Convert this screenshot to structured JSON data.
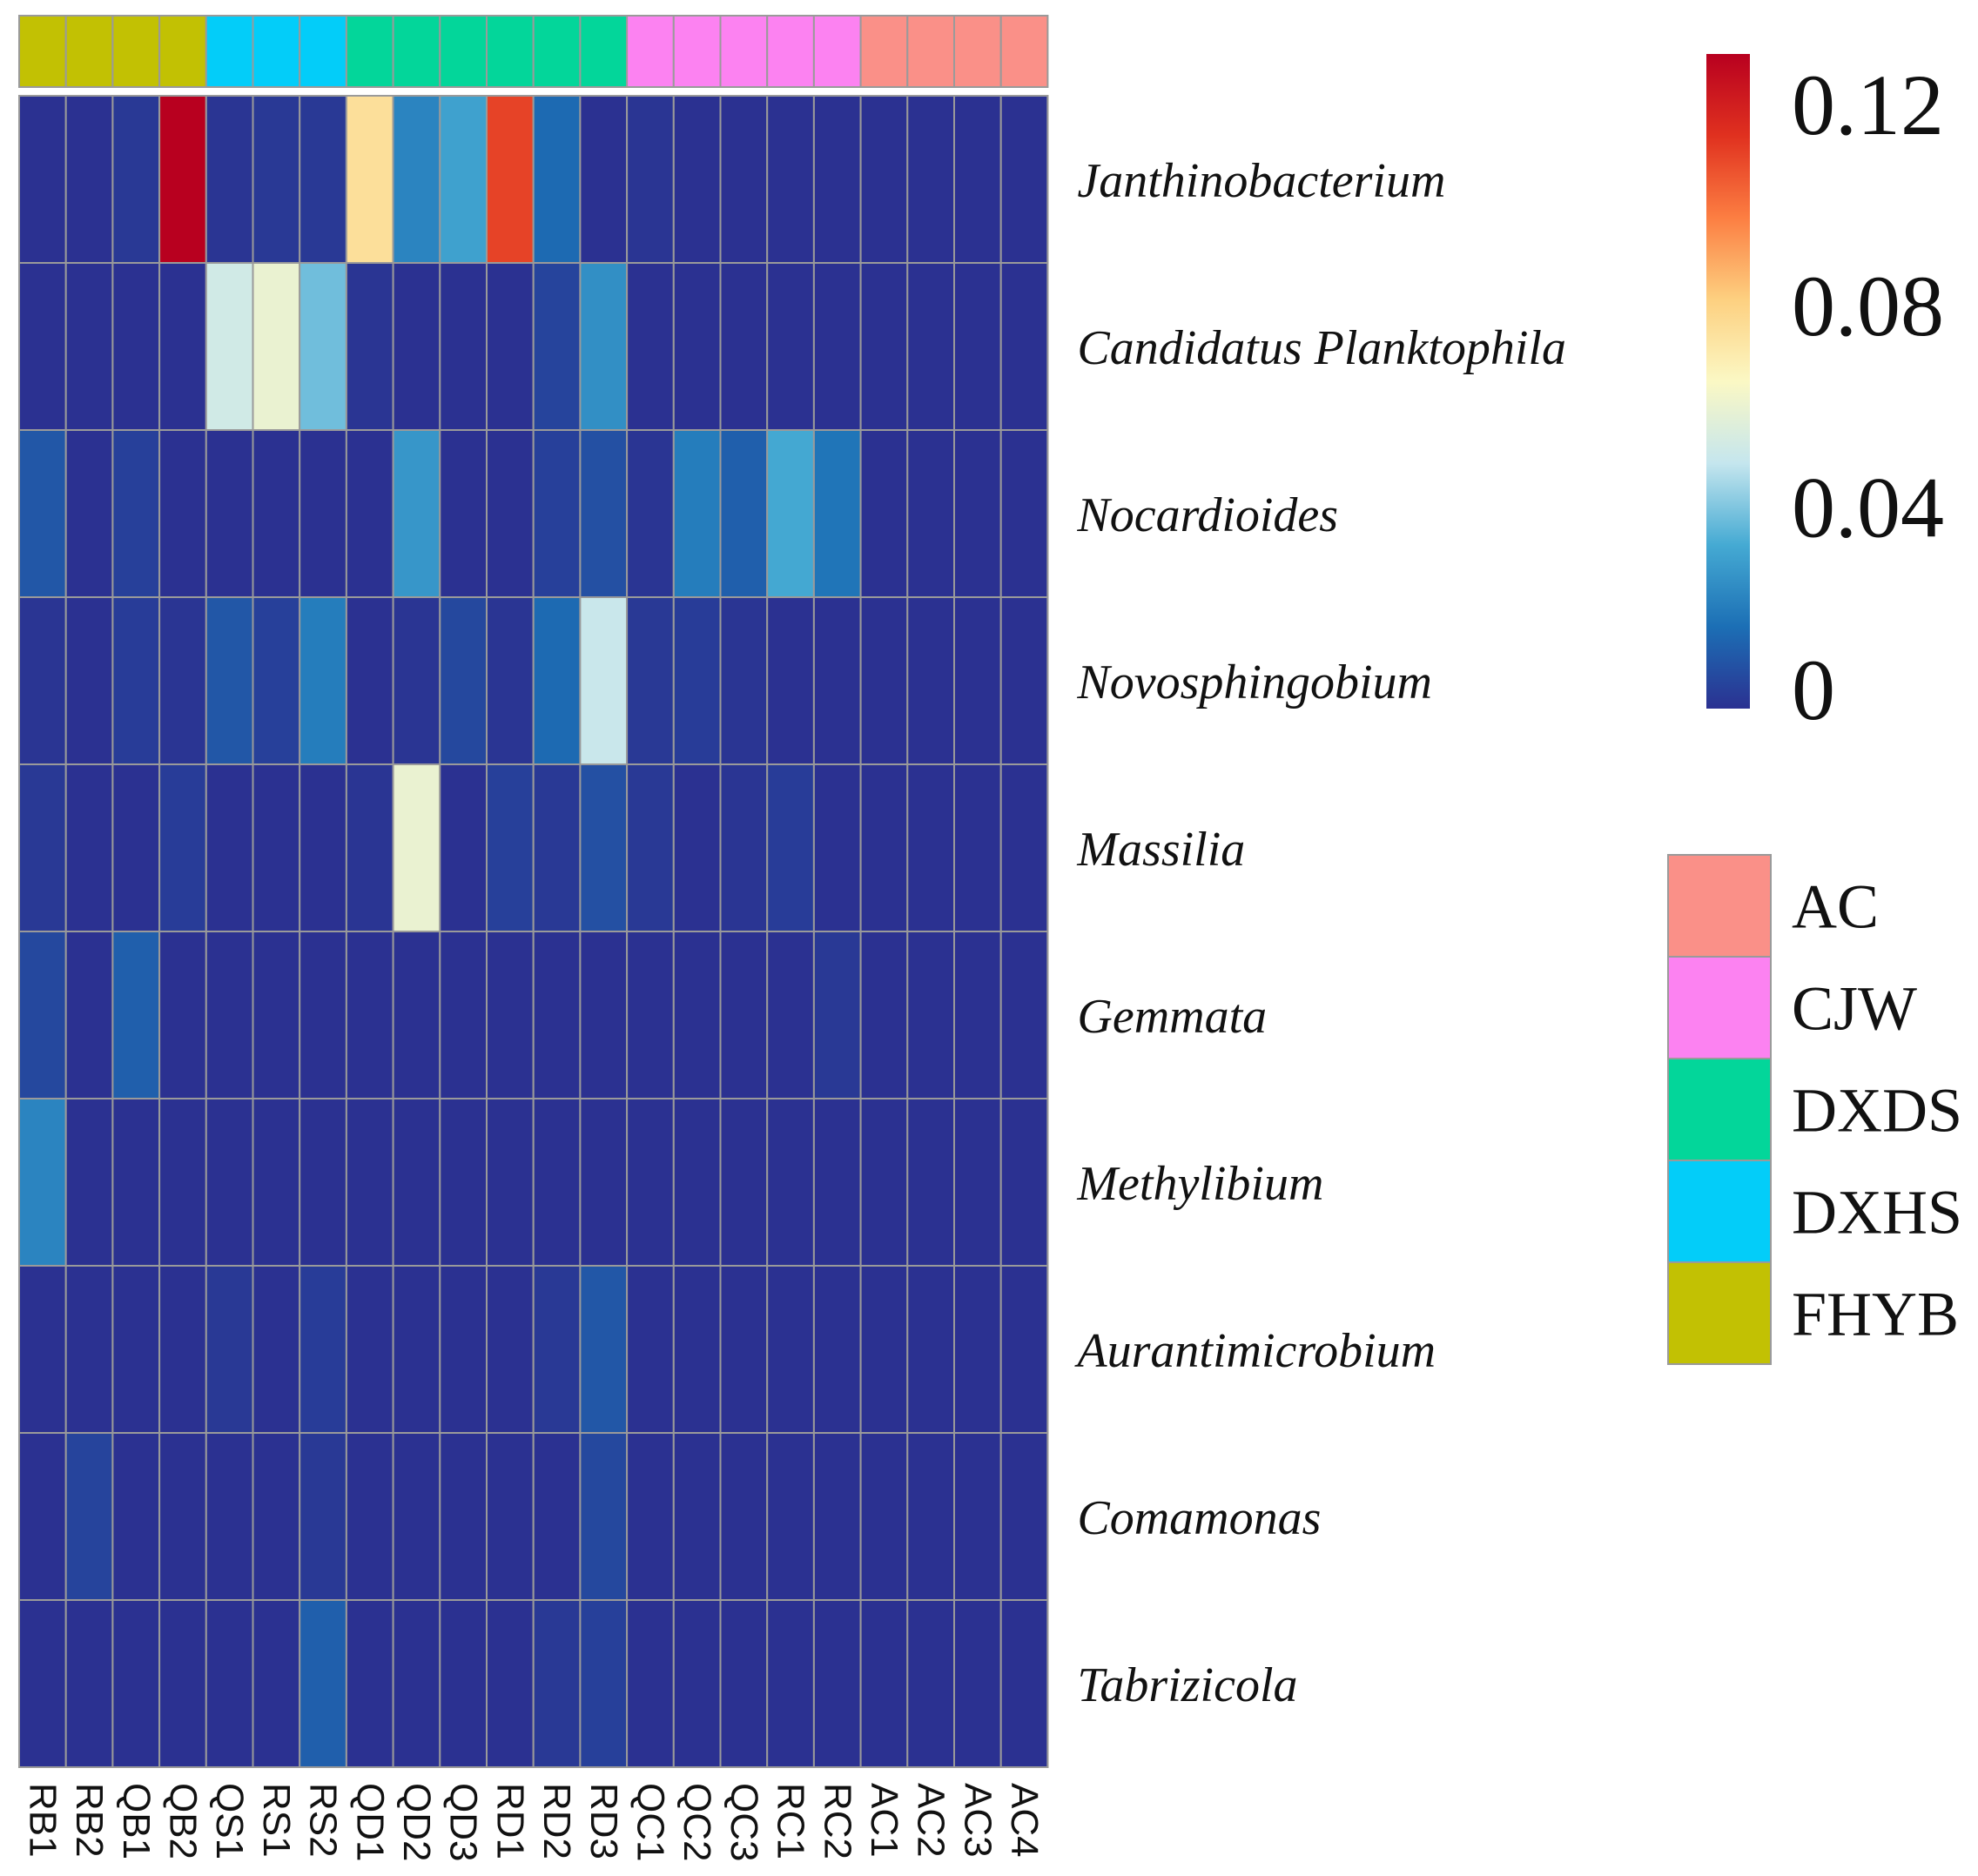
{
  "chart_data": {
    "type": "heatmap",
    "title": "",
    "columns": [
      "RB1",
      "RB2",
      "QB1",
      "QB2",
      "QS1",
      "RS1",
      "RS2",
      "QD1",
      "QD2",
      "QD3",
      "RD1",
      "RD2",
      "RD3",
      "QC1",
      "QC2",
      "QC3",
      "RC1",
      "RC2",
      "AC1",
      "AC2",
      "AC3",
      "AC4"
    ],
    "column_groups": [
      "FHYB",
      "FHYB",
      "FHYB",
      "FHYB",
      "DXHS",
      "DXHS",
      "DXHS",
      "DXDS",
      "DXDS",
      "DXDS",
      "DXDS",
      "DXDS",
      "DXDS",
      "CJW",
      "CJW",
      "CJW",
      "CJW",
      "CJW",
      "AC",
      "AC",
      "AC",
      "AC"
    ],
    "rows": [
      "Janthinobacterium",
      "Candidatus Planktophila",
      "Nocardioides",
      "Novosphingobium",
      "Massilia",
      "Gemmata",
      "Methylibium",
      "Aurantimicrobium",
      "Comamonas",
      "Tabrizicola"
    ],
    "values": [
      [
        0.0,
        0.0,
        0.002,
        0.13,
        0.001,
        0.002,
        0.002,
        0.075,
        0.022,
        0.03,
        0.11,
        0.015,
        0.0,
        0.001,
        0.0,
        0.0,
        0.0,
        0.0,
        0.0,
        0.0,
        0.0,
        0.0
      ],
      [
        0.0,
        0.0,
        0.0,
        0.0,
        0.052,
        0.06,
        0.038,
        0.001,
        0.0,
        0.0,
        0.0,
        0.005,
        0.025,
        0.0,
        0.0,
        0.0,
        0.0,
        0.0,
        0.0,
        0.0,
        0.0,
        0.0
      ],
      [
        0.01,
        0.0,
        0.004,
        0.0,
        0.0,
        0.0,
        0.0,
        0.0,
        0.027,
        0.0,
        0.0,
        0.004,
        0.008,
        0.001,
        0.02,
        0.012,
        0.032,
        0.018,
        0.0,
        0.0,
        0.0,
        0.0
      ],
      [
        0.001,
        0.0,
        0.003,
        0.001,
        0.01,
        0.004,
        0.02,
        0.0,
        0.001,
        0.006,
        0.001,
        0.015,
        0.05,
        0.002,
        0.003,
        0.001,
        0.0,
        0.0,
        0.0,
        0.0,
        0.0,
        0.0
      ],
      [
        0.002,
        0.0,
        0.0,
        0.003,
        0.0,
        0.0,
        0.0,
        0.001,
        0.06,
        0.0,
        0.004,
        0.002,
        0.008,
        0.002,
        0.0,
        0.001,
        0.003,
        0.0,
        0.0,
        0.0,
        0.0,
        0.0
      ],
      [
        0.006,
        0.0,
        0.012,
        0.0,
        0.0,
        0.0,
        0.0,
        0.0,
        0.0,
        0.0,
        0.0,
        0.0,
        0.0,
        0.0,
        0.0,
        0.0,
        0.0,
        0.002,
        0.0,
        0.0,
        0.0,
        0.0
      ],
      [
        0.022,
        0.0,
        0.0,
        0.0,
        0.0,
        0.0,
        0.0,
        0.0,
        0.0,
        0.0,
        0.0,
        0.0,
        0.0,
        0.0,
        0.0,
        0.0,
        0.0,
        0.0,
        0.0,
        0.0,
        0.0,
        0.0
      ],
      [
        0.0,
        0.0,
        0.0,
        0.0,
        0.002,
        0.0,
        0.003,
        0.0,
        0.0,
        0.0,
        0.0,
        0.002,
        0.01,
        0.0,
        0.0,
        0.0,
        0.0,
        0.0,
        0.0,
        0.0,
        0.0,
        0.0
      ],
      [
        0.0,
        0.005,
        0.0,
        0.0,
        0.0,
        0.0,
        0.002,
        0.0,
        0.0,
        0.0,
        0.0,
        0.0,
        0.006,
        0.0,
        0.0,
        0.0,
        0.0,
        0.0,
        0.0,
        0.0,
        0.0,
        0.0
      ],
      [
        0.0,
        0.0,
        0.0,
        0.0,
        0.0,
        0.0,
        0.012,
        0.0,
        0.0,
        0.0,
        0.0,
        0.002,
        0.004,
        0.0,
        0.0,
        0.0,
        0.0,
        0.0,
        0.0,
        0.0,
        0.0,
        0.0
      ]
    ],
    "color_scale": {
      "domain": [
        0,
        0.13
      ],
      "ticks": [
        {
          "value": 0,
          "label": "0"
        },
        {
          "value": 0.04,
          "label": "0.04"
        },
        {
          "value": 0.08,
          "label": "0.08"
        },
        {
          "value": 0.12,
          "label": "0.12"
        }
      ],
      "colors": [
        "#2b3191",
        "#1c6fb5",
        "#45aad3",
        "#c5e6ee",
        "#fbf8c4",
        "#fdd080",
        "#fc7e42",
        "#e0311f",
        "#b8001f"
      ]
    },
    "group_legend": [
      {
        "name": "AC",
        "color": "#fa9088"
      },
      {
        "name": "CJW",
        "color": "#fc82f1"
      },
      {
        "name": "DXDS",
        "color": "#03d69a"
      },
      {
        "name": "DXHS",
        "color": "#03cdf9"
      },
      {
        "name": "FHYB",
        "color": "#c2c103"
      }
    ],
    "legend_position": "right"
  }
}
